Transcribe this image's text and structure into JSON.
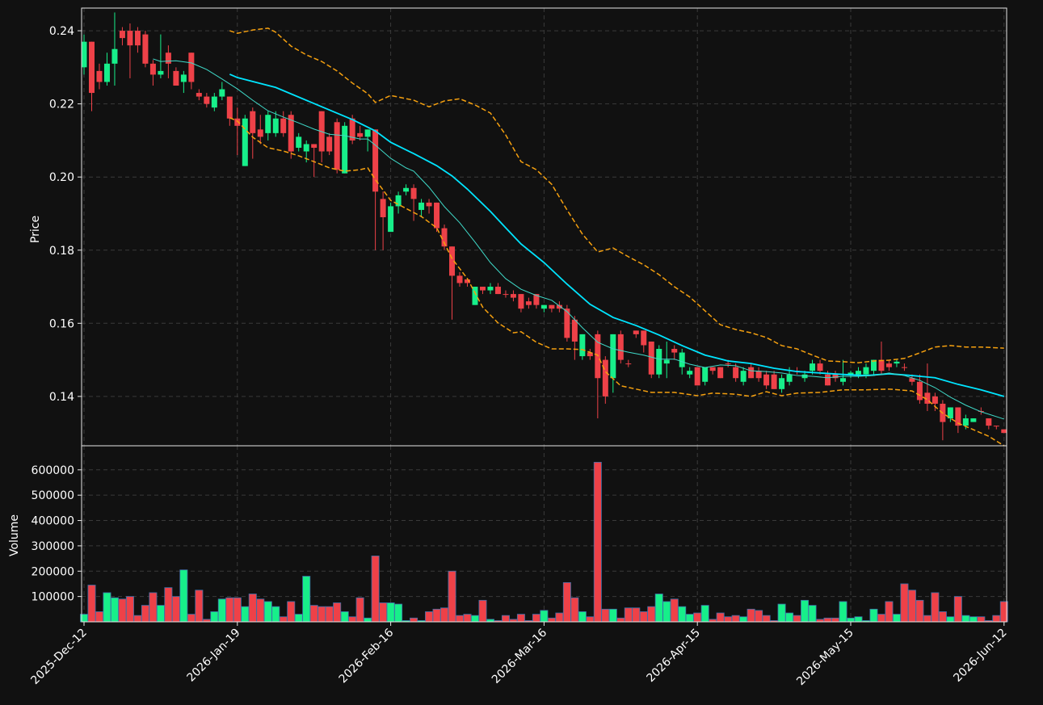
{
  "chart_data": {
    "type": "candlestick",
    "ylabel": "Price",
    "ylim": [
      0.1265,
      0.2462
    ],
    "yticks": [
      0.14,
      0.16,
      0.18,
      {
        "value": 0.2,
        "label": "0.20"
      },
      0.22,
      0.24
    ],
    "grid": true,
    "up_color": "#17ef8a",
    "down_color": "#ee4148",
    "categories": [
      "2025-Dec-12",
      null,
      null,
      null,
      null,
      null,
      null,
      null,
      null,
      null,
      null,
      null,
      null,
      null,
      null,
      null,
      null,
      null,
      null,
      null,
      "2026-Jan-19",
      null,
      null,
      null,
      null,
      null,
      null,
      null,
      null,
      null,
      null,
      null,
      null,
      null,
      null,
      null,
      null,
      null,
      null,
      null,
      "2026-Feb-16",
      null,
      null,
      null,
      null,
      null,
      null,
      null,
      null,
      null,
      null,
      null,
      null,
      null,
      null,
      null,
      null,
      null,
      null,
      null,
      "2026-Mar-16",
      null,
      null,
      null,
      null,
      null,
      null,
      null,
      null,
      null,
      null,
      null,
      null,
      null,
      null,
      null,
      null,
      null,
      null,
      null,
      "2026-Apr-15",
      null,
      null,
      null,
      null,
      null,
      null,
      null,
      null,
      null,
      null,
      null,
      null,
      null,
      null,
      null,
      null,
      null,
      null,
      null,
      "2026-May-15",
      null,
      null,
      null,
      null,
      null,
      null,
      null,
      null,
      null,
      null,
      null,
      null,
      null,
      null,
      null,
      null,
      null,
      null,
      null,
      "2026-Jun-12"
    ],
    "open": [
      0.23,
      0.237,
      0.229,
      0.226,
      0.231,
      0.24,
      0.24,
      0.24,
      0.239,
      0.231,
      0.228,
      0.234,
      0.229,
      0.226,
      0.234,
      0.223,
      0.222,
      0.219,
      0.222,
      0.222,
      0.216,
      0.203,
      0.218,
      0.213,
      0.212,
      0.212,
      0.216,
      0.217,
      0.208,
      0.207,
      0.209,
      0.218,
      0.211,
      0.215,
      0.201,
      0.216,
      0.212,
      0.211,
      0.213,
      0.194,
      0.185,
      0.192,
      0.196,
      0.197,
      0.191,
      0.193,
      0.193,
      0.186,
      0.181,
      0.173,
      0.172,
      0.165,
      0.17,
      0.169,
      0.17,
      0.168,
      0.168,
      0.168,
      0.166,
      0.168,
      0.164,
      0.165,
      0.165,
      0.164,
      0.161,
      0.151,
      0.152,
      0.157,
      0.15,
      0.145,
      0.157,
      0.149,
      0.158,
      0.158,
      0.155,
      0.146,
      0.149,
      0.153,
      0.148,
      0.146,
      0.148,
      0.144,
      0.148,
      0.148,
      0.149,
      0.148,
      0.144,
      0.148,
      0.147,
      0.146,
      0.146,
      0.142,
      0.144,
      0.147,
      0.145,
      0.147,
      0.149,
      0.146,
      0.146,
      0.144,
      0.146,
      0.146,
      0.146,
      0.147,
      0.15,
      0.149,
      0.149,
      0.148,
      0.145,
      0.144,
      0.141,
      0.14,
      0.138,
      0.134,
      0.137,
      0.132,
      0.133,
      0.136,
      0.134,
      0.132,
      0.131
    ],
    "high": [
      0.239,
      0.237,
      0.231,
      0.234,
      0.245,
      0.241,
      0.242,
      0.241,
      0.24,
      0.232,
      0.239,
      0.236,
      0.23,
      0.229,
      0.234,
      0.224,
      0.223,
      0.223,
      0.226,
      0.222,
      0.219,
      0.217,
      0.219,
      0.217,
      0.218,
      0.218,
      0.218,
      0.218,
      0.212,
      0.21,
      0.209,
      0.218,
      0.212,
      0.216,
      0.215,
      0.217,
      0.214,
      0.213,
      0.213,
      0.196,
      0.193,
      0.196,
      0.198,
      0.198,
      0.194,
      0.194,
      0.193,
      0.187,
      0.181,
      0.174,
      0.172,
      0.17,
      0.17,
      0.171,
      0.171,
      0.169,
      0.169,
      0.168,
      0.167,
      0.168,
      0.165,
      0.165,
      0.166,
      0.165,
      0.162,
      0.157,
      0.153,
      0.158,
      0.151,
      0.157,
      0.158,
      0.15,
      0.158,
      0.158,
      0.155,
      0.154,
      0.155,
      0.154,
      0.153,
      0.148,
      0.148,
      0.148,
      0.148,
      0.148,
      0.15,
      0.149,
      0.148,
      0.149,
      0.148,
      0.147,
      0.147,
      0.146,
      0.148,
      0.148,
      0.147,
      0.15,
      0.15,
      0.147,
      0.147,
      0.15,
      0.147,
      0.148,
      0.149,
      0.15,
      0.155,
      0.15,
      0.15,
      0.149,
      0.146,
      0.146,
      0.149,
      0.141,
      0.139,
      0.137,
      0.137,
      0.135,
      0.134,
      0.137,
      0.134,
      0.132,
      0.131
    ],
    "low": [
      0.228,
      0.218,
      0.224,
      0.225,
      0.225,
      0.236,
      0.227,
      0.234,
      0.23,
      0.225,
      0.227,
      0.227,
      0.225,
      0.223,
      0.224,
      0.221,
      0.219,
      0.218,
      0.221,
      0.214,
      0.206,
      0.203,
      0.205,
      0.209,
      0.21,
      0.211,
      0.211,
      0.205,
      0.207,
      0.204,
      0.2,
      0.204,
      0.206,
      0.201,
      0.201,
      0.209,
      0.21,
      0.207,
      0.18,
      0.18,
      0.185,
      0.19,
      0.195,
      0.188,
      0.189,
      0.19,
      0.185,
      0.18,
      0.161,
      0.17,
      0.17,
      0.165,
      0.168,
      0.168,
      0.168,
      0.167,
      0.166,
      0.163,
      0.164,
      0.164,
      0.163,
      0.163,
      0.163,
      0.155,
      0.15,
      0.15,
      0.15,
      0.134,
      0.138,
      0.141,
      0.149,
      0.148,
      0.156,
      0.152,
      0.145,
      0.145,
      0.145,
      0.15,
      0.146,
      0.145,
      0.143,
      0.143,
      0.146,
      0.145,
      0.148,
      0.144,
      0.143,
      0.145,
      0.144,
      0.142,
      0.142,
      0.141,
      0.143,
      0.146,
      0.144,
      0.146,
      0.146,
      0.143,
      0.144,
      0.143,
      0.145,
      0.145,
      0.145,
      0.146,
      0.146,
      0.147,
      0.148,
      0.147,
      0.143,
      0.138,
      0.136,
      0.136,
      0.128,
      0.133,
      0.13,
      0.131,
      0.133,
      0.135,
      0.131,
      0.131,
      0.13
    ],
    "close": [
      0.237,
      0.223,
      0.226,
      0.231,
      0.235,
      0.238,
      0.236,
      0.236,
      0.231,
      0.228,
      0.229,
      0.231,
      0.225,
      0.228,
      0.226,
      0.222,
      0.22,
      0.222,
      0.224,
      0.216,
      0.214,
      0.216,
      0.212,
      0.211,
      0.217,
      0.216,
      0.212,
      0.207,
      0.211,
      0.209,
      0.208,
      0.207,
      0.207,
      0.202,
      0.214,
      0.21,
      0.211,
      0.213,
      0.196,
      0.189,
      0.192,
      0.195,
      0.197,
      0.194,
      0.193,
      0.192,
      0.186,
      0.181,
      0.173,
      0.171,
      0.171,
      0.17,
      0.169,
      0.17,
      0.168,
      0.1678,
      0.167,
      0.164,
      0.165,
      0.165,
      0.165,
      0.164,
      0.164,
      0.156,
      0.155,
      0.157,
      0.151,
      0.145,
      0.14,
      0.157,
      0.15,
      0.1488,
      0.157,
      0.154,
      0.146,
      0.153,
      0.15,
      0.152,
      0.152,
      0.147,
      0.143,
      0.148,
      0.147,
      0.145,
      0.1488,
      0.145,
      0.147,
      0.145,
      0.145,
      0.143,
      0.142,
      0.145,
      0.146,
      0.1468,
      0.146,
      0.149,
      0.147,
      0.143,
      0.145,
      0.145,
      0.1465,
      0.147,
      0.148,
      0.15,
      0.147,
      0.148,
      0.1495,
      0.1478,
      0.144,
      0.139,
      0.138,
      0.138,
      0.133,
      0.137,
      0.132,
      0.134,
      0.134,
      0.1358,
      0.132,
      0.1318,
      0.13
    ],
    "lines": [
      {
        "color": "#00e5ff",
        "width": 1.8,
        "dashed": false,
        "x": [
          19,
          20,
          25,
          30,
          35,
          38,
          40,
          43,
          46,
          48,
          50,
          53,
          55,
          57,
          60,
          63,
          66,
          69,
          72,
          75,
          78,
          81,
          84,
          87,
          90,
          93,
          96,
          99,
          102,
          105,
          108,
          111,
          114,
          117,
          120
        ],
        "values": [
          0.2281,
          0.2272,
          0.2245,
          0.2201,
          0.2157,
          0.2126,
          0.2095,
          0.2064,
          0.2031,
          0.2003,
          0.1967,
          0.1906,
          0.1861,
          0.1817,
          0.1766,
          0.1707,
          0.1652,
          0.1616,
          0.1594,
          0.1568,
          0.1539,
          0.1513,
          0.1497,
          0.149,
          0.1477,
          0.1468,
          0.1464,
          0.146,
          0.1457,
          0.1462,
          0.1457,
          0.1451,
          0.1433,
          0.1418,
          0.14
        ]
      },
      {
        "color": "#3fd9c8",
        "width": 1,
        "dashed": false,
        "x": [
          9,
          10,
          12,
          14,
          16,
          18,
          20,
          22,
          24,
          26,
          28,
          30,
          32,
          34,
          36,
          37,
          38,
          40,
          42,
          43,
          45,
          47,
          49,
          51,
          53,
          55,
          57,
          59,
          61,
          63,
          65,
          67,
          69,
          71,
          73,
          75,
          77,
          79,
          81,
          83,
          85,
          87,
          89,
          91,
          93,
          95,
          97,
          99,
          101,
          103,
          105,
          107,
          109,
          111,
          113,
          115,
          117,
          120
        ],
        "values": [
          0.2323,
          0.2316,
          0.2318,
          0.2312,
          0.2294,
          0.2268,
          0.2241,
          0.221,
          0.2181,
          0.2164,
          0.2148,
          0.2131,
          0.2117,
          0.2113,
          0.2104,
          0.2104,
          0.2087,
          0.2051,
          0.2025,
          0.2016,
          0.1972,
          0.1919,
          0.1875,
          0.1822,
          0.1766,
          0.1722,
          0.1693,
          0.1676,
          0.1663,
          0.1632,
          0.1588,
          0.1548,
          0.153,
          0.1521,
          0.1513,
          0.1502,
          0.1502,
          0.1488,
          0.1479,
          0.1486,
          0.1484,
          0.147,
          0.1468,
          0.1464,
          0.1457,
          0.1455,
          0.1451,
          0.1455,
          0.1455,
          0.1457,
          0.1464,
          0.1457,
          0.1444,
          0.1424,
          0.1398,
          0.1376,
          0.1358,
          0.1338
        ]
      },
      {
        "color": "#f5a00f",
        "width": 1.5,
        "dashed": true,
        "x": [
          19,
          20,
          22,
          24,
          25,
          27,
          29,
          31,
          33,
          35,
          37,
          38,
          40,
          43,
          45,
          47,
          49,
          51,
          53,
          55,
          57,
          59,
          61,
          63,
          65,
          67,
          69,
          71,
          73,
          75,
          77,
          79,
          81,
          83,
          85,
          87,
          89,
          91,
          93,
          95,
          97,
          99,
          101,
          103,
          105,
          107,
          109,
          111,
          113,
          115,
          117,
          120
        ],
        "values": [
          0.24,
          0.2393,
          0.2402,
          0.2407,
          0.2396,
          0.2358,
          0.2334,
          0.2316,
          0.229,
          0.2257,
          0.2228,
          0.2204,
          0.2223,
          0.221,
          0.2192,
          0.2208,
          0.2214,
          0.2197,
          0.2175,
          0.2115,
          0.2042,
          0.202,
          0.198,
          0.191,
          0.1844,
          0.1795,
          0.1806,
          0.1782,
          0.176,
          0.1733,
          0.17,
          0.1672,
          0.1634,
          0.1596,
          0.1583,
          0.1574,
          0.1561,
          0.1539,
          0.153,
          0.1513,
          0.1497,
          0.1495,
          0.1492,
          0.1497,
          0.1499,
          0.1504,
          0.1519,
          0.1535,
          0.1539,
          0.1535,
          0.1535,
          0.1532
        ]
      },
      {
        "color": "#f5a00f",
        "width": 1.5,
        "dashed": true,
        "x": [
          19,
          20,
          22,
          24,
          26,
          28,
          30,
          32,
          34,
          36,
          37,
          38,
          40,
          42,
          44,
          46,
          48,
          50,
          52,
          54,
          56,
          57,
          59,
          61,
          63,
          65,
          67,
          68,
          70,
          72,
          74,
          77,
          80,
          82,
          85,
          87,
          89,
          91,
          93,
          96,
          99,
          102,
          105,
          108,
          110,
          112,
          114,
          116,
          118,
          120
        ],
        "values": [
          0.2162,
          0.2153,
          0.2109,
          0.208,
          0.2071,
          0.2058,
          0.2042,
          0.2025,
          0.2016,
          0.202,
          0.2025,
          0.1993,
          0.1936,
          0.1914,
          0.1892,
          0.1861,
          0.1777,
          0.1722,
          0.1644,
          0.1601,
          0.1574,
          0.1577,
          0.1548,
          0.153,
          0.153,
          0.1528,
          0.1513,
          0.1468,
          0.1429,
          0.142,
          0.1411,
          0.1411,
          0.1402,
          0.1409,
          0.1406,
          0.14,
          0.1413,
          0.1402,
          0.1409,
          0.1411,
          0.1418,
          0.1418,
          0.142,
          0.1415,
          0.1391,
          0.1354,
          0.1327,
          0.1309,
          0.1291,
          0.1265
        ]
      }
    ],
    "volume": {
      "ylabel": "Volume",
      "ylim": [
        0,
        695000
      ],
      "yticks": [
        100000,
        200000,
        300000,
        400000,
        500000,
        600000
      ],
      "edge_color": "#3f6fa8",
      "values": [
        30000,
        145000,
        40000,
        115000,
        95000,
        90000,
        100000,
        25000,
        65000,
        115000,
        65000,
        135000,
        100000,
        205000,
        30000,
        125000,
        10000,
        40000,
        90000,
        95000,
        95000,
        60000,
        110000,
        90000,
        80000,
        60000,
        20000,
        80000,
        30000,
        180000,
        65000,
        60000,
        60000,
        75000,
        40000,
        20000,
        95000,
        15000,
        260000,
        75000,
        75000,
        70000,
        5000,
        15000,
        5000,
        40000,
        50000,
        55000,
        200000,
        25000,
        30000,
        25000,
        85000,
        10000,
        5000,
        25000,
        10000,
        30000,
        5000,
        30000,
        45000,
        15000,
        35000,
        155000,
        95000,
        40000,
        20000,
        630000,
        50000,
        50000,
        15000,
        55000,
        55000,
        40000,
        60000,
        110000,
        80000,
        90000,
        60000,
        30000,
        35000,
        65000,
        10000,
        35000,
        20000,
        25000,
        20000,
        50000,
        45000,
        25000,
        5000,
        70000,
        35000,
        25000,
        85000,
        65000,
        10000,
        15000,
        15000,
        80000,
        15000,
        20000,
        5000,
        50000,
        30000,
        80000,
        30000,
        150000,
        125000,
        85000,
        25000,
        115000,
        40000,
        20000,
        100000,
        25000,
        20000,
        20000,
        5000,
        25000,
        80000
      ]
    }
  }
}
